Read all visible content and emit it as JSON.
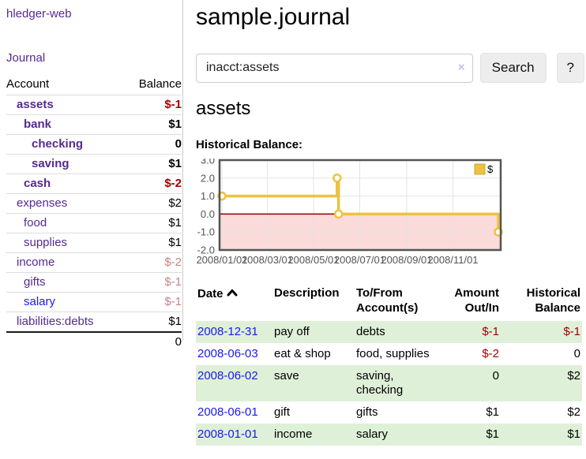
{
  "colors": {
    "accent_purple": "#552a90",
    "link_blue": "#1b1ae3",
    "negative_strong": "#a40000",
    "negative_muted": "#c98383",
    "row_green": "#dff0d8",
    "chart_gold": "#edc240"
  },
  "sidebar": {
    "brand": "hledger-web",
    "journal_label": "Journal",
    "accounts_table": {
      "col_account": "Account",
      "col_balance": "Balance",
      "rows": [
        {
          "name": "assets",
          "indent": 1,
          "bold": true,
          "balance": "$-1",
          "balance_class": "neg-strong"
        },
        {
          "name": "bank",
          "indent": 2,
          "bold": true,
          "balance": "$1",
          "balance_class": ""
        },
        {
          "name": "checking",
          "indent": 3,
          "bold": true,
          "balance": "0",
          "balance_class": ""
        },
        {
          "name": "saving",
          "indent": 3,
          "bold": true,
          "balance": "$1",
          "balance_class": ""
        },
        {
          "name": "cash",
          "indent": 2,
          "bold": true,
          "balance": "$-2",
          "balance_class": "neg-strong"
        },
        {
          "name": "expenses",
          "indent": 1,
          "bold": false,
          "balance": "$2",
          "balance_class": ""
        },
        {
          "name": "food",
          "indent": 2,
          "bold": false,
          "balance": "$1",
          "balance_class": ""
        },
        {
          "name": "supplies",
          "indent": 2,
          "bold": false,
          "balance": "$1",
          "balance_class": ""
        },
        {
          "name": "income",
          "indent": 1,
          "bold": false,
          "balance": "$-2",
          "balance_class": "neg-muted"
        },
        {
          "name": "gifts",
          "indent": 2,
          "bold": false,
          "balance": "$-1",
          "balance_class": "neg-muted"
        },
        {
          "name": "salary",
          "indent": 2,
          "bold": false,
          "balance": "$-1",
          "balance_class": "neg-muted",
          "link_color": "blue"
        },
        {
          "name": "liabilities:debts",
          "indent": 1,
          "bold": false,
          "balance": "$1",
          "balance_class": ""
        }
      ],
      "total": "0"
    }
  },
  "header": {
    "title": "sample.journal"
  },
  "search": {
    "value": "inacct:assets",
    "clear_icon": "×",
    "button_label": "Search",
    "help_label": "?"
  },
  "account_page": {
    "heading": "assets",
    "chart_label": "Historical Balance:"
  },
  "chart_data": {
    "type": "line",
    "step": true,
    "title": "Historical Balance:",
    "series": [
      {
        "name": "$",
        "color": "#edc240",
        "points": [
          [
            "2008-01-01",
            1
          ],
          [
            "2008-06-01",
            2
          ],
          [
            "2008-06-03",
            0
          ],
          [
            "2008-12-31",
            -1
          ]
        ]
      }
    ],
    "x_tick_labels": [
      "2008/01/01",
      "2008/03/01",
      "2008/05/01",
      "2008/07/01",
      "2008/09/01",
      "2008/11/01"
    ],
    "y_tick_labels": [
      "3.0",
      "2.0",
      "1.0",
      "0.0",
      "-1.0",
      "-2.0"
    ],
    "ylim": [
      -2,
      3
    ],
    "xlim": [
      "2008-01-01",
      "2008-12-31"
    ],
    "legend_position": "top-right",
    "grid": true,
    "negative_region_color": "#fbdada",
    "zero_line_color": "#8b0000",
    "border_color": "#545454",
    "grid_color": "#e3e3e3",
    "tick_label_color": "#545454"
  },
  "register": {
    "columns": [
      {
        "lines": [
          "Date"
        ],
        "sort": true,
        "align": "left"
      },
      {
        "lines": [
          "Description"
        ],
        "align": "left"
      },
      {
        "lines": [
          "To/From",
          "Account(s)"
        ],
        "align": "left"
      },
      {
        "lines": [
          "Amount",
          "Out/In"
        ],
        "align": "right"
      },
      {
        "lines": [
          "Historical",
          "Balance"
        ],
        "align": "right"
      }
    ],
    "sort_icon": "chevron-up",
    "rows": [
      {
        "date": "2008-12-31",
        "description": "pay off",
        "accounts": "debts",
        "amount": "$-1",
        "amount_class": "neg-strong",
        "balance": "$-1",
        "balance_class": "neg-strong"
      },
      {
        "date": "2008-06-03",
        "description": "eat & shop",
        "accounts": "food, supplies",
        "amount": "$-2",
        "amount_class": "neg-strong",
        "balance": "0",
        "balance_class": ""
      },
      {
        "date": "2008-06-02",
        "description": "save",
        "accounts": "saving, checking",
        "amount": "0",
        "amount_class": "",
        "balance": "$2",
        "balance_class": ""
      },
      {
        "date": "2008-06-01",
        "description": "gift",
        "accounts": "gifts",
        "amount": "$1",
        "amount_class": "",
        "balance": "$2",
        "balance_class": ""
      },
      {
        "date": "2008-01-01",
        "description": "income",
        "accounts": "salary",
        "amount": "$1",
        "amount_class": "",
        "balance": "$1",
        "balance_class": ""
      }
    ]
  }
}
